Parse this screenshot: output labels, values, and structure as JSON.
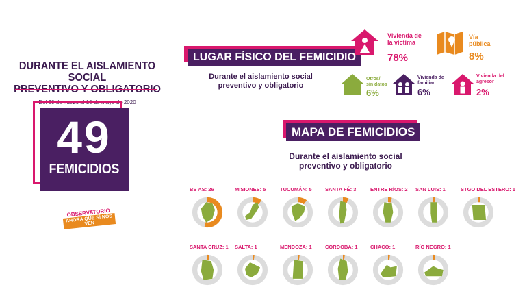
{
  "left": {
    "title_line1": "DURANTE EL AISLAMIENTO SOCIAL",
    "title_line2": "PREVENTIVO Y OBLIGATORIO",
    "dates": "Del 20 de marzo al 10 de mayo de 2020",
    "total_number": "49",
    "total_label": "FEMICIDIOS",
    "logo_top": "OBSERVATORIO",
    "logo_bottom": "AHORA QUE SÍ NOS VEN"
  },
  "lugar": {
    "header": "LUGAR FÍSICO DEL FEMICIDIO",
    "subtitle_line1": "Durante el aislamiento social",
    "subtitle_line2": "preventivo y obligatorio",
    "categories": [
      {
        "label_line1": "Vivienda de",
        "label_line2": "la víctima",
        "value": "78%",
        "icon": "house-woman-icon",
        "color": "#d9186d"
      },
      {
        "label_line1": "Vía",
        "label_line2": "pública",
        "value": "8%",
        "icon": "map-icon",
        "color": "#e98a1f"
      },
      {
        "label_line1": "Otros/",
        "label_line2": "sin datos",
        "value": "6%",
        "icon": "house-icon",
        "color": "#8bab3d"
      },
      {
        "label_line1": "Vivienda de",
        "label_line2": "familiar",
        "value": "6%",
        "icon": "house-family-icon",
        "color": "#4a1f62"
      },
      {
        "label_line1": "Vivienda del",
        "label_line2": "agresor",
        "value": "2%",
        "icon": "house-man-icon",
        "color": "#d9186d"
      }
    ]
  },
  "mapa": {
    "header": "MAPA DE FEMICIDIOS",
    "subtitle_line1": "Durante el aislamiento social",
    "subtitle_line2": "preventivo y obligatorio",
    "provinces": [
      {
        "label": "BS AS: 26",
        "count": 26
      },
      {
        "label": "MISIONES: 5",
        "count": 5
      },
      {
        "label": "TUCUMÁN: 5",
        "count": 5
      },
      {
        "label": "SANTA FÉ: 3",
        "count": 3
      },
      {
        "label": "ENTRE RÍOS: 2",
        "count": 2
      },
      {
        "label": "SAN LUIS: 1",
        "count": 1
      },
      {
        "label": "STGO DEL ESTERO: 1",
        "count": 1
      },
      {
        "label": "SANTA CRUZ: 1",
        "count": 1
      },
      {
        "label": "SALTA: 1",
        "count": 1
      },
      {
        "label": "MENDOZA: 1",
        "count": 1
      },
      {
        "label": "CORDOBA: 1",
        "count": 1
      },
      {
        "label": "CHACO: 1",
        "count": 1
      },
      {
        "label": "RÍO NEGRO: 1",
        "count": 1
      }
    ],
    "total": 49,
    "ring_color": "#e98a1f",
    "track_color": "#dcdcdc",
    "shape_color": "#8bab3d"
  }
}
